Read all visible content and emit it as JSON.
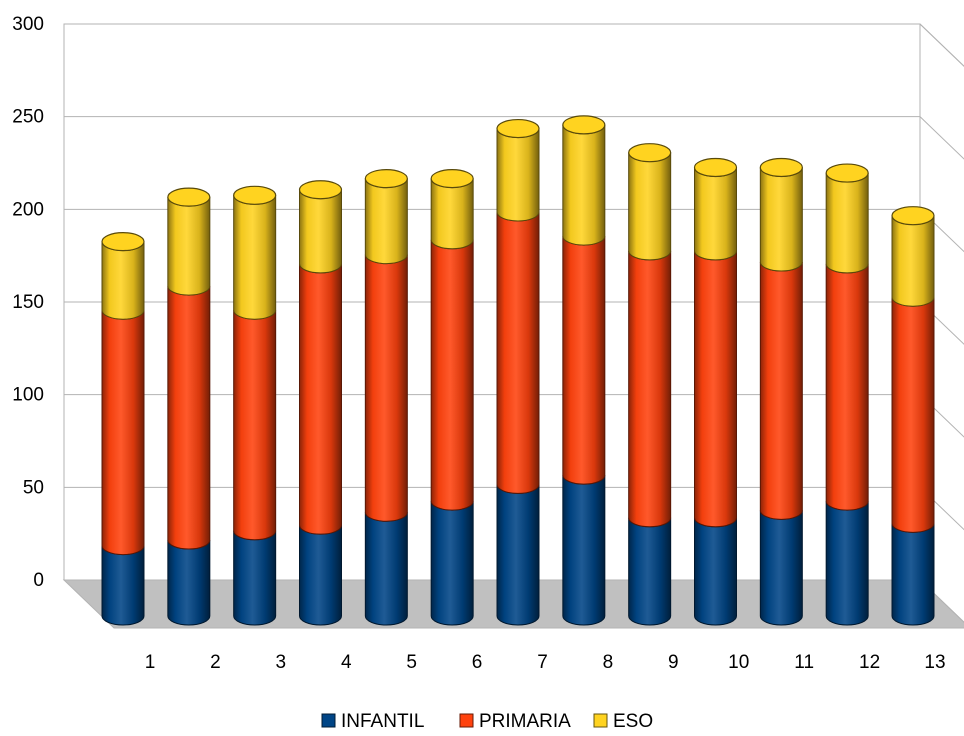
{
  "chart_data": {
    "type": "bar",
    "stacked": true,
    "style": "3d-cylinder",
    "categories": [
      "1",
      "2",
      "3",
      "4",
      "5",
      "6",
      "7",
      "8",
      "9",
      "10",
      "11",
      "12",
      "13"
    ],
    "series": [
      {
        "name": "INFANTIL",
        "color": "#004586",
        "values": [
          38,
          41,
          46,
          49,
          56,
          62,
          71,
          76,
          53,
          53,
          57,
          62,
          50
        ]
      },
      {
        "name": "PRIMARIA",
        "color": "#ff420e",
        "values": [
          127,
          137,
          119,
          141,
          139,
          141,
          147,
          129,
          144,
          144,
          134,
          128,
          122
        ]
      },
      {
        "name": "ESO",
        "color": "#ffd320",
        "values": [
          37,
          48,
          62,
          40,
          41,
          33,
          45,
          60,
          53,
          45,
          51,
          49,
          44
        ]
      }
    ],
    "yticks": [
      "0",
      "50",
      "100",
      "150",
      "200",
      "250",
      "300"
    ],
    "ylim": [
      0,
      300
    ],
    "grid": true,
    "legend_position": "bottom"
  }
}
